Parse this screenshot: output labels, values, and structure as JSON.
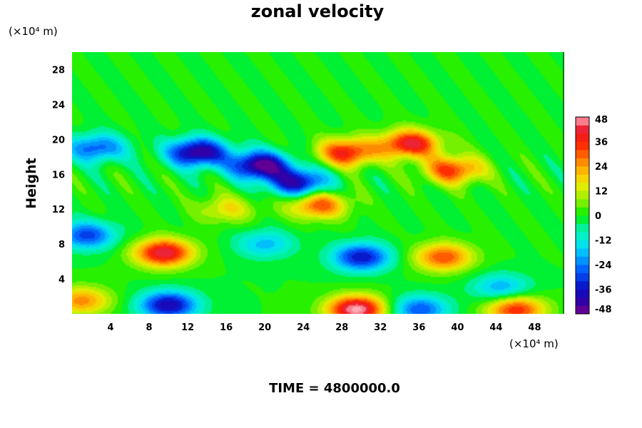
{
  "chart_data": {
    "type": "heatmap",
    "title": "zonal velocity",
    "ylabel": "Height",
    "xlabel": "",
    "x_unit": "(×10⁴ m)",
    "y_unit": "(×10⁴ m)",
    "xlim": [
      0,
      51
    ],
    "ylim": [
      0,
      30
    ],
    "x_ticks": [
      4,
      8,
      12,
      16,
      20,
      24,
      28,
      32,
      36,
      40,
      44,
      48
    ],
    "y_ticks": [
      4,
      8,
      12,
      16,
      20,
      24,
      28
    ],
    "colorbar": {
      "min": -48,
      "max": 48,
      "step": 4,
      "tick_labels": [
        48,
        36,
        24,
        12,
        0,
        -12,
        -24,
        -36,
        -48
      ]
    },
    "background_value": 0,
    "features": [
      {
        "x": 9.5,
        "y": 7,
        "value": 44
      },
      {
        "x": 29.5,
        "y": 0.5,
        "value": 50
      },
      {
        "x": 10,
        "y": 1,
        "value": -40
      },
      {
        "x": 30,
        "y": 6.5,
        "value": -36
      },
      {
        "x": 38.5,
        "y": 6.5,
        "value": 32
      },
      {
        "x": 46,
        "y": 0.5,
        "value": 36
      },
      {
        "x": 1,
        "y": 1.5,
        "value": 26
      },
      {
        "x": 36,
        "y": 0.5,
        "value": -28
      },
      {
        "x": 44.5,
        "y": 3,
        "value": -20
      },
      {
        "x": 20,
        "y": 8,
        "value": -18
      },
      {
        "x": 13,
        "y": 18.5,
        "value": -46
      },
      {
        "x": 19.5,
        "y": 17,
        "value": -48
      },
      {
        "x": 23.5,
        "y": 15,
        "value": -40
      },
      {
        "x": 2.5,
        "y": 19,
        "value": -28
      },
      {
        "x": 35,
        "y": 19.5,
        "value": 42
      },
      {
        "x": 39.5,
        "y": 16.5,
        "value": 34
      },
      {
        "x": 28.5,
        "y": 18.5,
        "value": 38
      },
      {
        "x": 25.5,
        "y": 12.5,
        "value": 32
      },
      {
        "x": 1.5,
        "y": 9,
        "value": -30
      },
      {
        "x": 16,
        "y": 12,
        "value": 16
      }
    ],
    "annotation": "TIME = 4800000.0"
  }
}
